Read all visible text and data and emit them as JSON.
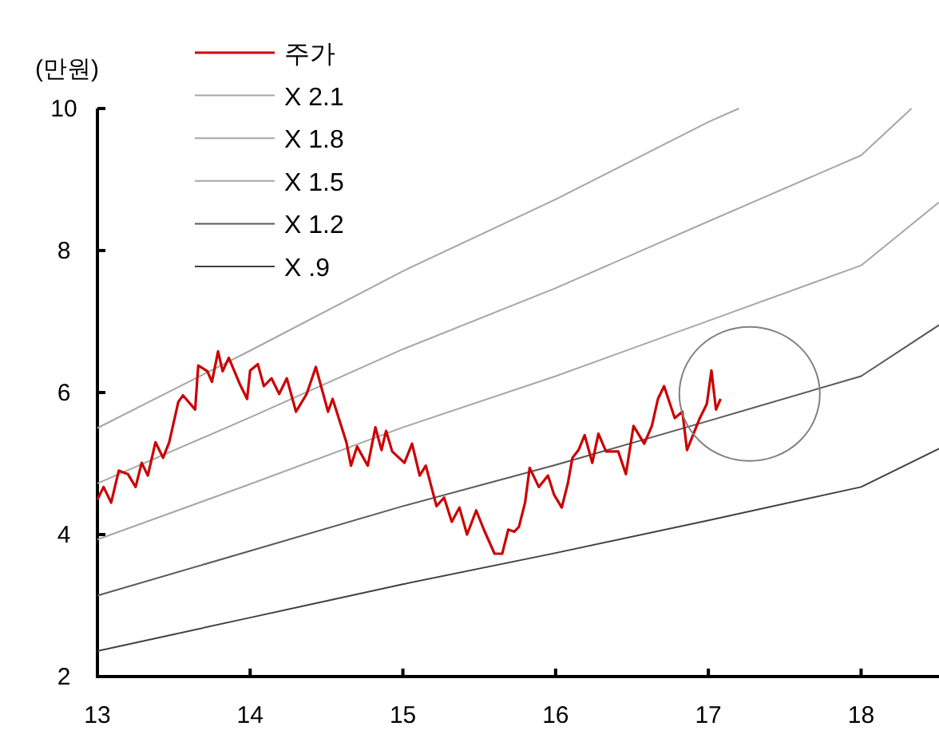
{
  "chart_data": {
    "type": "line",
    "ylabel": "(만원)",
    "xlim": [
      13,
      18.51
    ],
    "ylim": [
      2,
      10
    ],
    "xticks": [
      13,
      14,
      15,
      16,
      17,
      18
    ],
    "yticks": [
      2,
      4,
      6,
      8,
      10
    ],
    "legend": "top left",
    "series": [
      {
        "name": "주가",
        "color": "#cc0000",
        "x": [
          13.0,
          13.04,
          13.09,
          13.14,
          13.2,
          13.25,
          13.29,
          13.33,
          13.38,
          13.43,
          13.47,
          13.53,
          13.56,
          13.64,
          13.66,
          13.72,
          13.75,
          13.79,
          13.82,
          13.86,
          13.93,
          13.98,
          14.0,
          14.05,
          14.09,
          14.14,
          14.19,
          14.24,
          14.3,
          14.37,
          14.43,
          14.51,
          14.54,
          14.63,
          14.66,
          14.7,
          14.77,
          14.82,
          14.86,
          14.89,
          14.93,
          15.01,
          15.06,
          15.11,
          15.15,
          15.22,
          15.27,
          15.32,
          15.37,
          15.42,
          15.48,
          15.53,
          15.6,
          15.65,
          15.69,
          15.73,
          15.76,
          15.8,
          15.83,
          15.89,
          15.95,
          15.99,
          16.04,
          16.08,
          16.11,
          16.15,
          16.19,
          16.24,
          16.28,
          16.33,
          16.41,
          16.46,
          16.51,
          16.58,
          16.63,
          16.67,
          16.71,
          16.78,
          16.83,
          16.86,
          16.94,
          16.99,
          17.02,
          17.05,
          17.08
        ],
        "values": [
          4.49,
          4.67,
          4.45,
          4.9,
          4.85,
          4.67,
          5.01,
          4.83,
          5.3,
          5.08,
          5.3,
          5.87,
          5.96,
          5.76,
          6.38,
          6.3,
          6.15,
          6.58,
          6.3,
          6.49,
          6.13,
          5.91,
          6.31,
          6.4,
          6.09,
          6.2,
          5.98,
          6.2,
          5.73,
          5.98,
          6.36,
          5.73,
          5.91,
          5.3,
          4.97,
          5.24,
          4.97,
          5.51,
          5.19,
          5.46,
          5.17,
          5.01,
          5.28,
          4.83,
          4.97,
          4.4,
          4.52,
          4.18,
          4.38,
          4.0,
          4.34,
          4.07,
          3.73,
          3.73,
          4.07,
          4.04,
          4.11,
          4.45,
          4.94,
          4.67,
          4.83,
          4.56,
          4.38,
          4.72,
          5.08,
          5.19,
          5.4,
          5.01,
          5.42,
          5.17,
          5.17,
          4.85,
          5.53,
          5.28,
          5.53,
          5.91,
          6.09,
          5.64,
          5.73,
          5.19,
          5.62,
          5.84,
          6.31,
          5.76,
          5.91
        ]
      },
      {
        "name": "X 2.1",
        "color": "#a6a6a6",
        "x": [
          13,
          14,
          15,
          16,
          17,
          17.2
        ],
        "values": [
          5.5,
          6.59,
          7.71,
          8.72,
          9.81,
          10
        ]
      },
      {
        "name": "X 1.8",
        "color": "#a6a6a6",
        "x": [
          13,
          14,
          15,
          16,
          17,
          18,
          18.33
        ],
        "values": [
          4.72,
          5.65,
          6.61,
          7.47,
          8.41,
          9.34,
          10
        ]
      },
      {
        "name": "X 1.5",
        "color": "#a6a6a6",
        "x": [
          13,
          14,
          15,
          16,
          17,
          18,
          18.51
        ],
        "values": [
          3.93,
          4.71,
          5.51,
          6.23,
          7.01,
          7.79,
          8.68
        ]
      },
      {
        "name": "X 1.2",
        "color": "#595959",
        "x": [
          13,
          14,
          15,
          16,
          17,
          18,
          18.51
        ],
        "values": [
          3.14,
          3.77,
          4.4,
          4.98,
          5.6,
          6.23,
          6.95
        ]
      },
      {
        "name": "X .9",
        "color": "#404040",
        "x": [
          13,
          14,
          15,
          16,
          17,
          18,
          18.51
        ],
        "values": [
          2.36,
          2.83,
          3.3,
          3.74,
          4.2,
          4.67,
          5.21
        ]
      }
    ]
  }
}
